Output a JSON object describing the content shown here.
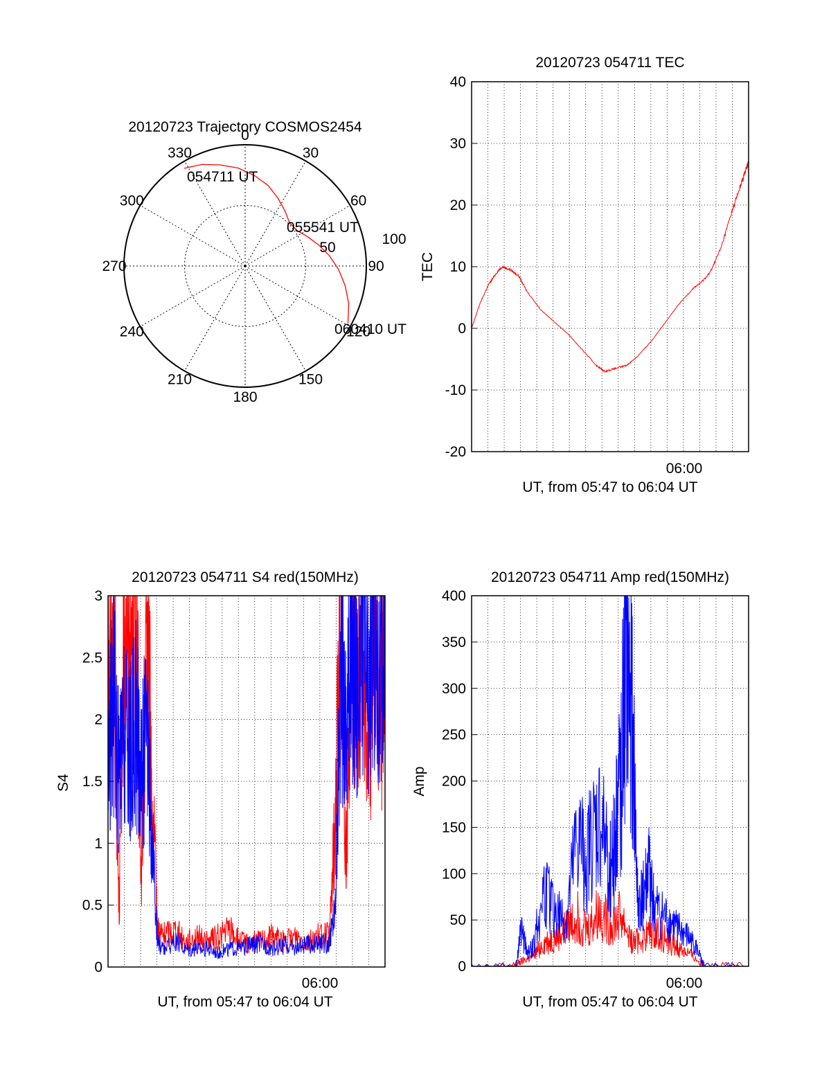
{
  "colors": {
    "red": "#ff0000",
    "blue": "#0000ff",
    "black": "#000000"
  },
  "chart_data": [
    {
      "id": "trajectory",
      "type": "polar",
      "title": "20120723 Trajectory COSMOS2454",
      "azimuth_ticks": [
        "0",
        "30",
        "60",
        "90",
        "120",
        "150",
        "180",
        "210",
        "240",
        "270",
        "300",
        "330"
      ],
      "ring_labels": [
        "50",
        "100"
      ],
      "grid": true,
      "series": [
        {
          "color": "red",
          "points": [
            [
              328,
              95
            ],
            [
              337,
              91
            ],
            [
              346,
              86
            ],
            [
              356,
              81
            ],
            [
              6,
              75
            ],
            [
              16,
              69
            ],
            [
              26,
              62
            ],
            [
              36,
              56
            ],
            [
              46,
              51
            ],
            [
              56,
              52
            ],
            [
              65,
              57
            ],
            [
              74,
              63
            ],
            [
              83,
              70
            ],
            [
              92,
              77
            ],
            [
              101,
              84
            ],
            [
              110,
              91
            ],
            [
              119,
              97
            ]
          ]
        }
      ],
      "annotations": [
        "054711 UT",
        "055541 UT",
        "060410 UT"
      ]
    },
    {
      "id": "tec",
      "type": "line",
      "title": "20120723 054711 TEC",
      "ylabel": "TEC",
      "xlabel": "UT, from 05:47 to 06:04 UT",
      "xtick_labels": [
        "06:00"
      ],
      "ylim": [
        -20,
        40
      ],
      "yticks": [
        "-20",
        "-10",
        "0",
        "10",
        "20",
        "30",
        "40"
      ],
      "grid": true,
      "series": [
        {
          "color": "red",
          "x": [
            0,
            0.03,
            0.06,
            0.09,
            0.11,
            0.14,
            0.17,
            0.2,
            0.25,
            0.3,
            0.35,
            0.4,
            0.45,
            0.48,
            0.52,
            0.56,
            0.6,
            0.65,
            0.7,
            0.75,
            0.8,
            0.83,
            0.86,
            0.9,
            0.94,
            0.97,
            1.0
          ],
          "y": [
            0,
            4,
            7,
            9,
            10,
            9.5,
            8.5,
            6,
            3,
            1,
            -1,
            -3.5,
            -6,
            -7,
            -6.5,
            -6,
            -4.5,
            -2,
            1,
            4,
            6.5,
            7.5,
            9,
            13,
            19,
            23,
            27
          ]
        }
      ]
    },
    {
      "id": "s4",
      "type": "line",
      "title": "20120723 054711 S4 red(150MHz)",
      "ylabel": "S4",
      "xlabel": "UT, from 05:47 to 06:04 UT",
      "xtick_labels": [
        "06:00"
      ],
      "ylim": [
        0,
        3
      ],
      "yticks": [
        "0",
        "0.5",
        "1",
        "1.5",
        "2",
        "2.5",
        "3"
      ],
      "grid": true,
      "series": [
        {
          "color": "red",
          "x": [
            0,
            0.02,
            0.04,
            0.06,
            0.08,
            0.1,
            0.12,
            0.14,
            0.16,
            0.18,
            0.2,
            0.24,
            0.28,
            0.32,
            0.36,
            0.4,
            0.44,
            0.48,
            0.52,
            0.56,
            0.6,
            0.64,
            0.68,
            0.72,
            0.76,
            0.8,
            0.82,
            0.84,
            0.86,
            0.88,
            0.9,
            0.92,
            0.94,
            0.96,
            0.98,
            1.0
          ],
          "y": [
            2.4,
            3.0,
            0.5,
            3.0,
            2.6,
            3.0,
            0.6,
            3.0,
            1.3,
            0.3,
            0.25,
            0.3,
            0.2,
            0.25,
            0.2,
            0.25,
            0.3,
            0.2,
            0.2,
            0.22,
            0.25,
            0.2,
            0.25,
            0.2,
            0.25,
            0.25,
            1.2,
            3.0,
            0.8,
            3.0,
            2.0,
            3.0,
            1.5,
            3.0,
            1.8,
            2.6
          ]
        },
        {
          "color": "blue",
          "x": [
            0,
            0.02,
            0.04,
            0.06,
            0.08,
            0.1,
            0.12,
            0.14,
            0.16,
            0.18,
            0.2,
            0.24,
            0.28,
            0.32,
            0.36,
            0.4,
            0.44,
            0.48,
            0.52,
            0.56,
            0.6,
            0.64,
            0.68,
            0.72,
            0.76,
            0.8,
            0.82,
            0.84,
            0.86,
            0.88,
            0.9,
            0.92,
            0.94,
            0.96,
            0.98,
            1.0
          ],
          "y": [
            1.6,
            2.2,
            1.5,
            1.9,
            1.7,
            2.0,
            1.6,
            1.8,
            0.9,
            0.2,
            0.15,
            0.2,
            0.15,
            0.15,
            0.15,
            0.12,
            0.15,
            0.15,
            0.18,
            0.18,
            0.15,
            0.18,
            0.15,
            0.18,
            0.18,
            0.2,
            0.5,
            2.4,
            2.0,
            2.6,
            2.3,
            2.8,
            2.1,
            2.9,
            2.3,
            2.5
          ]
        }
      ]
    },
    {
      "id": "amp",
      "type": "line",
      "title": "20120723 054711 Amp red(150MHz)",
      "ylabel": "Amp",
      "xlabel": "UT, from 05:47 to 06:04 UT",
      "xtick_labels": [
        "06:00"
      ],
      "ylim": [
        0,
        400
      ],
      "yticks": [
        "0",
        "50",
        "100",
        "150",
        "200",
        "250",
        "300",
        "350",
        "400"
      ],
      "grid": true,
      "series": [
        {
          "color": "red",
          "x": [
            0,
            0.15,
            0.18,
            0.22,
            0.26,
            0.3,
            0.34,
            0.38,
            0.42,
            0.46,
            0.5,
            0.54,
            0.58,
            0.62,
            0.66,
            0.7,
            0.74,
            0.78,
            0.82,
            0.85,
            1.0
          ],
          "y": [
            0,
            0,
            5,
            10,
            25,
            30,
            40,
            55,
            40,
            60,
            45,
            55,
            25,
            30,
            40,
            30,
            20,
            15,
            5,
            0,
            0
          ]
        },
        {
          "color": "blue",
          "x": [
            0,
            0.16,
            0.18,
            0.2,
            0.22,
            0.26,
            0.3,
            0.34,
            0.38,
            0.42,
            0.46,
            0.5,
            0.52,
            0.54,
            0.56,
            0.58,
            0.6,
            0.62,
            0.64,
            0.66,
            0.7,
            0.74,
            0.78,
            0.81,
            0.84,
            1.0
          ],
          "y": [
            0,
            0,
            40,
            15,
            20,
            80,
            60,
            45,
            130,
            120,
            150,
            110,
            140,
            220,
            310,
            260,
            60,
            75,
            100,
            60,
            50,
            40,
            30,
            20,
            0,
            0
          ]
        }
      ]
    }
  ]
}
